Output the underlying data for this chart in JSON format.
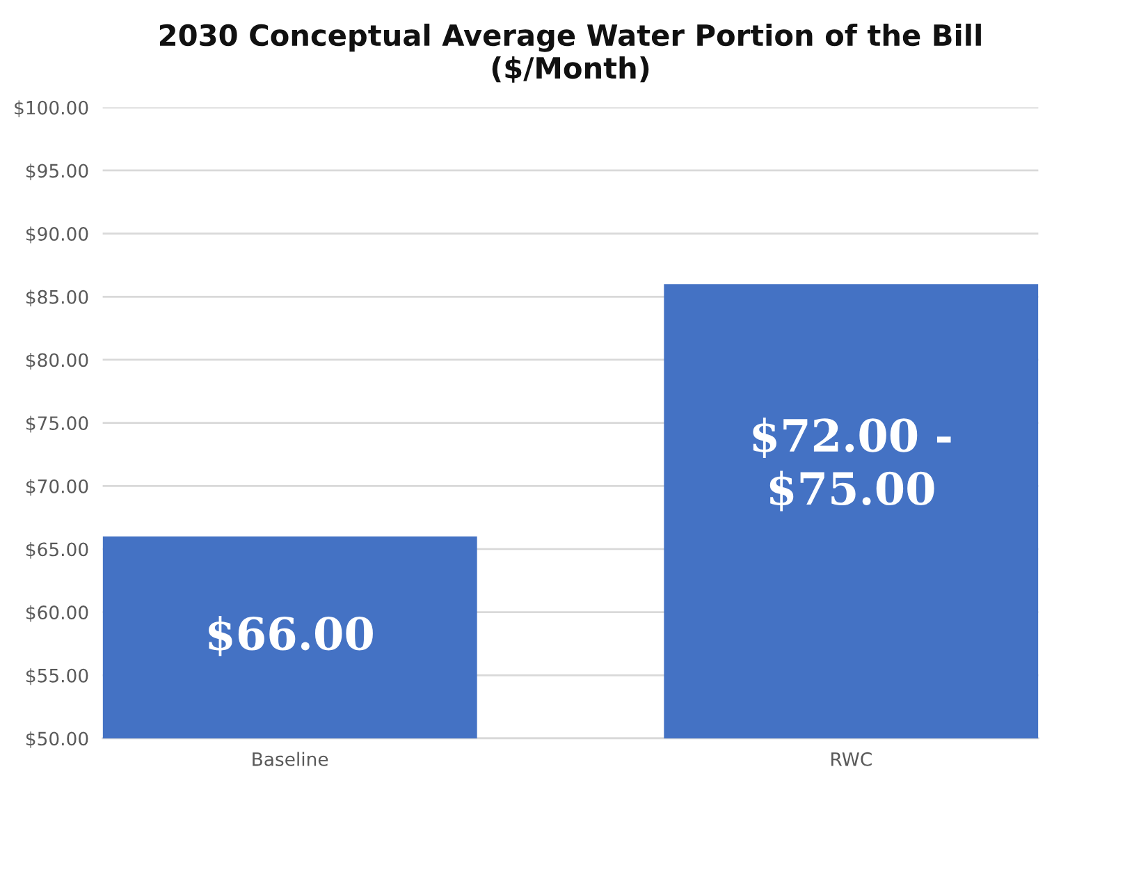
{
  "chart_data": {
    "type": "bar",
    "title": "2030 Conceptual Average Water Portion of the Bill\n($/Month)",
    "categories": [
      "Baseline",
      "RWC"
    ],
    "values": [
      66,
      86
    ],
    "color": "#4472c4",
    "value_labels": [
      "$66.00",
      null
    ],
    "annotations": [
      "$72.00 -\n$75.00"
    ],
    "ylim": [
      50,
      100
    ],
    "yticks": [
      {
        "value": 50,
        "label": "$50.00"
      },
      {
        "value": 55,
        "label": "$55.00"
      },
      {
        "value": 60,
        "label": "$60.00"
      },
      {
        "value": 65,
        "label": "$65.00"
      },
      {
        "value": 70,
        "label": "$70.00"
      },
      {
        "value": 75,
        "label": "$75.00"
      },
      {
        "value": 80,
        "label": "$80.00"
      },
      {
        "value": 85,
        "label": "$85.00"
      },
      {
        "value": 90,
        "label": "$90.00"
      },
      {
        "value": 95,
        "label": "$95.00"
      },
      {
        "value": 100,
        "label": "$100.00"
      }
    ],
    "grid": "y"
  }
}
